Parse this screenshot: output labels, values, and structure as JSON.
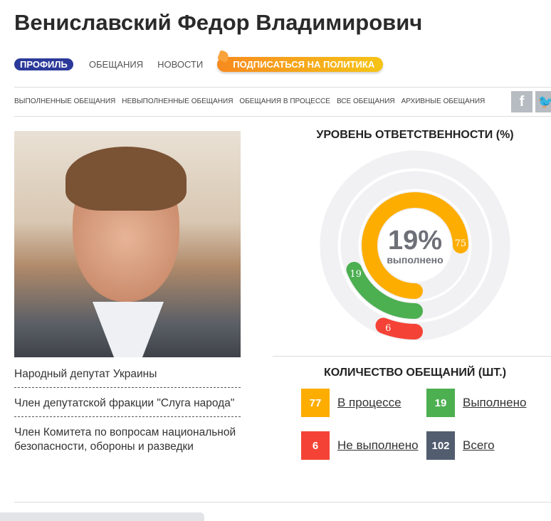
{
  "title": "Вениславский Федор Владимирович",
  "tabs": [
    {
      "label": "Профиль",
      "active": true
    },
    {
      "label": "Обещания"
    },
    {
      "label": "Новости"
    }
  ],
  "subscribe_label": "ПОДПИСАТЬСЯ НА ПОЛИТИКА",
  "filters": [
    "ВЫПОЛНЕННЫЕ ОБЕЩАНИЯ",
    "НЕВЫПОЛНЕННЫЕ ОБЕЩАНИЯ",
    "ОБЕЩАНИЯ В ПРОЦЕССЕ",
    "ВСЕ ОБЕЩАНИЯ",
    "АРХИВНЫЕ ОБЕЩАНИЯ"
  ],
  "social": {
    "facebook": "f",
    "twitter": "t"
  },
  "info": [
    "Народный депутат Украины",
    "Член депутатской фракции \"Слуга народа\"",
    "Член Комитета по вопросам национальной безопасности, обороны и разведки"
  ],
  "responsibility": {
    "heading": "УРОВЕНЬ ОТВЕТСТВЕННОСТИ (%)",
    "percent": "19%",
    "caption": "выполнено",
    "rings": [
      {
        "label": "75",
        "value": 75,
        "color": "#fdad00"
      },
      {
        "label": "19",
        "value": 19,
        "color": "#4caf50"
      },
      {
        "label": "6",
        "value": 6,
        "color": "#f44336"
      }
    ]
  },
  "counts": {
    "heading": "КОЛИЧЕСТВО ОБЕЩАНИЙ (ШТ.)",
    "items": [
      {
        "value": "77",
        "label": "В процессе",
        "color": "#fdad00"
      },
      {
        "value": "19",
        "label": "Выполнено",
        "color": "#4caf50"
      },
      {
        "value": "6",
        "label": "Не выполнено",
        "color": "#f44336"
      },
      {
        "value": "102",
        "label": "Всего",
        "color": "#525d6f"
      }
    ]
  }
}
